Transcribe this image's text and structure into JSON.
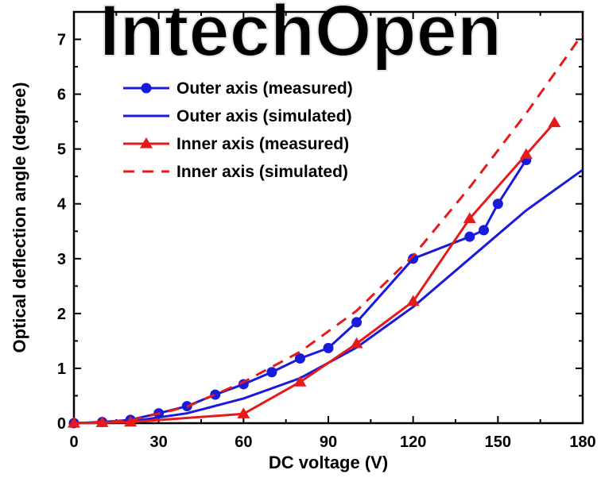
{
  "watermark": "IntechOpen",
  "chart_data": {
    "type": "line",
    "title": "",
    "xlabel": "DC voltage (V)",
    "ylabel": "Optical deflection angle (degree)",
    "xlim": [
      0,
      180
    ],
    "ylim": [
      0,
      7.5
    ],
    "xticks": [
      "0",
      "30",
      "60",
      "90",
      "120",
      "150",
      "180"
    ],
    "yticks": [
      "0",
      "1",
      "2",
      "3",
      "4",
      "5",
      "6",
      "7"
    ],
    "grid": false,
    "legend_position": "top-left",
    "series": [
      {
        "name": "Outer axis (measured)",
        "color": "#1a1adb",
        "style": "solid",
        "marker": "circle",
        "x": [
          0,
          10,
          20,
          30,
          40,
          50,
          60,
          70,
          80,
          90,
          100,
          120,
          140,
          145,
          150,
          160
        ],
        "y": [
          0,
          0.02,
          0.06,
          0.18,
          0.31,
          0.52,
          0.71,
          0.93,
          1.18,
          1.37,
          1.84,
          3.0,
          3.4,
          3.52,
          4.0,
          4.8
        ]
      },
      {
        "name": "Outer axis (simulated)",
        "color": "#1a1adb",
        "style": "solid",
        "marker": "none",
        "x": [
          0,
          20,
          40,
          60,
          80,
          100,
          120,
          140,
          160,
          180
        ],
        "y": [
          0,
          0.03,
          0.18,
          0.45,
          0.82,
          1.38,
          2.12,
          3.0,
          3.88,
          4.62
        ]
      },
      {
        "name": "Inner axis (measured)",
        "color": "#e51a1a",
        "style": "solid",
        "marker": "triangle",
        "x": [
          0,
          10,
          20,
          60,
          80,
          100,
          120,
          140,
          160,
          170
        ],
        "y": [
          0,
          0.01,
          0.02,
          0.17,
          0.75,
          1.45,
          2.22,
          3.73,
          4.9,
          5.48
        ]
      },
      {
        "name": "Inner axis (simulated)",
        "color": "#e51a1a",
        "style": "dashed",
        "marker": "none",
        "x": [
          0,
          20,
          40,
          60,
          80,
          100,
          120,
          140,
          160,
          180
        ],
        "y": [
          0,
          0.05,
          0.3,
          0.75,
          1.3,
          2.05,
          3.05,
          4.3,
          5.65,
          7.1
        ]
      }
    ]
  }
}
